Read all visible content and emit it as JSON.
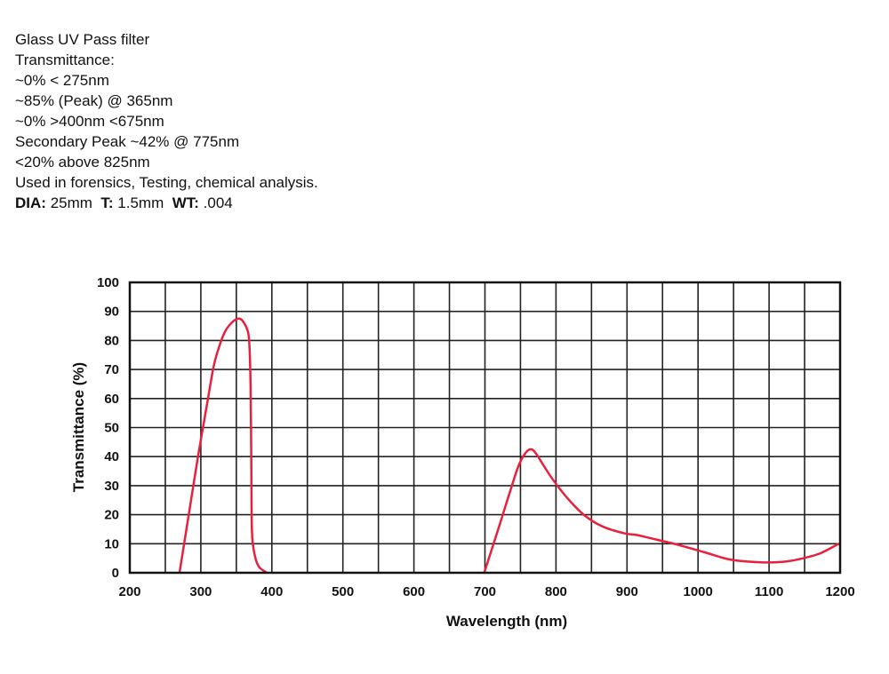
{
  "description": {
    "lines": [
      "Glass UV Pass filter",
      "Transmittance:",
      "~0% < 275nm",
      "~85% (Peak) @ 365nm",
      "~0% >400nm <675nm",
      "Secondary Peak ~42% @ 775nm",
      "<20% above 825nm",
      "Used in forensics, Testing, chemical analysis."
    ],
    "specs": {
      "dia_label": "DIA:",
      "dia_value": "25mm",
      "t_label": "T:",
      "t_value": "1.5mm",
      "wt_label": "WT:",
      "wt_value": ".004"
    }
  },
  "chart_data": {
    "type": "line",
    "title": "",
    "xlabel": "Wavelength (nm)",
    "ylabel": "Transmittance (%)",
    "xlim": [
      200,
      1200
    ],
    "ylim": [
      0,
      100
    ],
    "xticks": [
      200,
      300,
      400,
      500,
      600,
      700,
      800,
      900,
      1000,
      1100,
      1200
    ],
    "yticks": [
      0,
      10,
      20,
      30,
      40,
      50,
      60,
      70,
      80,
      90,
      100
    ],
    "grid": true,
    "x_grid_step": 50,
    "y_grid_step": 10,
    "line_color": "#e8203c",
    "series": [
      {
        "x": [
          270,
          283,
          296,
          308,
          318,
          326,
          334,
          343,
          352,
          358,
          365,
          368,
          370,
          371,
          372,
          376,
          382,
          393
        ],
        "y": [
          0,
          20,
          40,
          57,
          71,
          78,
          83,
          86,
          87.5,
          87,
          84,
          80,
          65,
          40,
          14,
          6,
          2,
          0
        ]
      },
      {
        "x": [
          699,
          720,
          746,
          758,
          765,
          772,
          793,
          815,
          839,
          865,
          896,
          914,
          940,
          971,
          1010,
          1046,
          1089,
          1120,
          1139,
          1170,
          1196,
          1200
        ],
        "y": [
          0,
          16,
          36,
          41.5,
          42.5,
          41,
          33,
          26,
          20,
          16,
          13.6,
          13,
          11.5,
          9.7,
          7,
          4.5,
          3.6,
          3.8,
          4.5,
          6.5,
          9.7,
          10
        ]
      }
    ]
  }
}
